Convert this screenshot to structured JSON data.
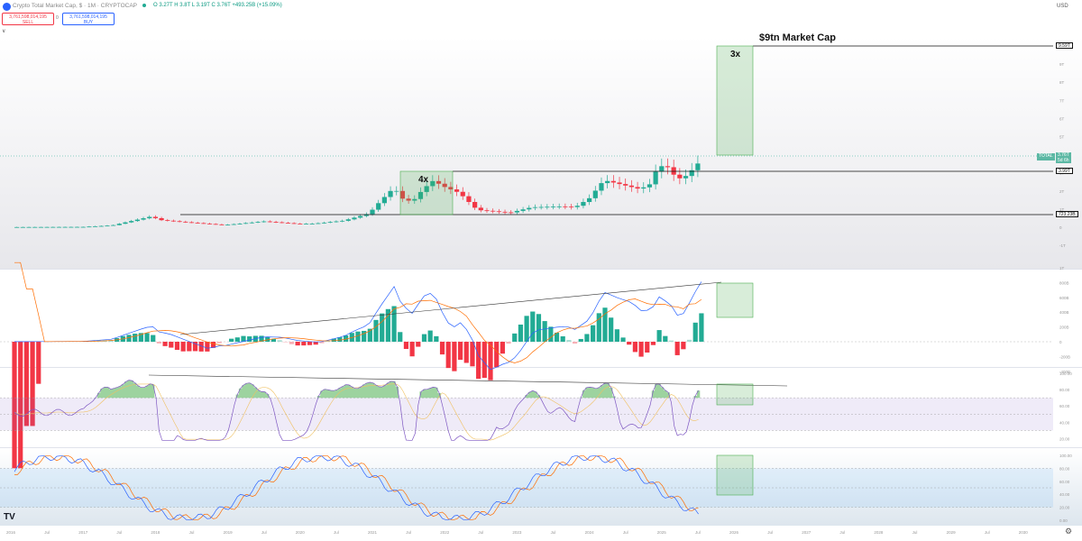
{
  "header": {
    "symbol_title": "Crypto Total Market Cap, $ · 1M · CRYPTOCAP",
    "ohlc": "O 3.27T  H 3.8T  L 3.19T  C 3.76T  +493.25B (+15.09%)",
    "sell_price": "3,761,598,014,195",
    "sell_label": "SELL",
    "spread": "0",
    "buy_price": "3,761,598,014,195",
    "buy_label": "BUY",
    "collapse_icon": "chevron-down-icon",
    "currency": "USD",
    "colors": {
      "up": "#22ab94",
      "down": "#f23645",
      "accent": "#2962ff"
    }
  },
  "annotations": {
    "market_cap_target": "$9tn Market Cap",
    "multiplier_current": "3x",
    "multiplier_previous": "4x"
  },
  "price_axis": {
    "labels": [
      "10T",
      "9T",
      "8T",
      "7T",
      "6T",
      "5T",
      "4T",
      "3T",
      "2T",
      "1T",
      "0",
      "-1T"
    ],
    "level_959": "9.59T",
    "level_399": "3.99T",
    "level_723": "723.23B",
    "current_tag": "TOTAL",
    "current_price": "3.76T",
    "current_countdown": "5d 6h"
  },
  "macd_axis": {
    "labels": [
      "1T",
      "800B",
      "600B",
      "400B",
      "200B",
      "0",
      "-200B",
      "-400B"
    ]
  },
  "rsi_axis": {
    "labels": [
      "100.00",
      "80.00",
      "60.00",
      "40.00",
      "20.00"
    ]
  },
  "stoch_axis": {
    "labels": [
      "100.00",
      "80.00",
      "60.00",
      "40.00",
      "20.00",
      "0.00"
    ]
  },
  "time_axis": {
    "labels": [
      "2016",
      "Jul",
      "2017",
      "Jul",
      "2018",
      "Jul",
      "2019",
      "Jul",
      "2020",
      "Jul",
      "2021",
      "Jul",
      "2022",
      "Jul",
      "2023",
      "Jul",
      "2024",
      "Jul",
      "2025",
      "Jul",
      "2026",
      "Jul",
      "2027",
      "Jul",
      "2028",
      "Jul",
      "2029",
      "Jul",
      "2030"
    ]
  },
  "chart_data": {
    "type": "candlestick",
    "title": "Crypto Total Market Cap",
    "unit": "USD trillions",
    "period": "2016 – 2025",
    "ylim": [
      -1,
      10
    ],
    "approx_closes": [
      {
        "date": "2017-12",
        "close": 0.72
      },
      {
        "date": "2021-01",
        "close": 1.0
      },
      {
        "date": "2021-05",
        "close": 1.6
      },
      {
        "date": "2021-11",
        "close": 3.0
      },
      {
        "date": "2022-06",
        "close": 0.9
      },
      {
        "date": "2023-01",
        "close": 1.0
      },
      {
        "date": "2024-03",
        "close": 2.6
      },
      {
        "date": "2024-12",
        "close": 3.4
      },
      {
        "date": "2025-04",
        "close": 2.7
      },
      {
        "date": "2025-07",
        "close": 3.76
      }
    ],
    "horizontal_levels": [
      9.59,
      3.99,
      0.72323
    ],
    "indicators": [
      "MACD",
      "RSI",
      "Stochastic RSI"
    ]
  }
}
